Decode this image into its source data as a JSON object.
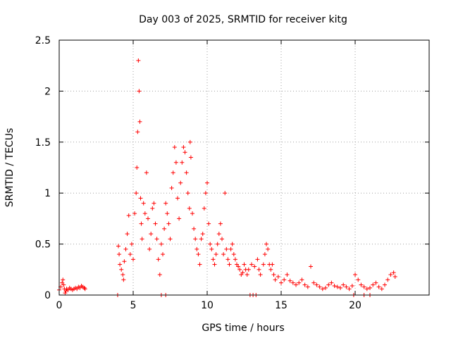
{
  "chart_data": {
    "type": "scatter",
    "title": "Day 003 of 2025, SRMTID for receiver kitg",
    "xlabel": "GPS time / hours",
    "ylabel": "SRMTID / TECUs",
    "xlim": [
      0,
      25
    ],
    "ylim": [
      0,
      2.5
    ],
    "xticks": [
      0,
      5,
      10,
      15,
      20
    ],
    "yticks": [
      0,
      0.5,
      1,
      1.5,
      2,
      2.5
    ],
    "ytick_labels": [
      "0",
      "0.5",
      "1",
      "1.5",
      "2",
      "2.5"
    ],
    "grid": true,
    "marker": "+",
    "color": "#ff0000",
    "series": [
      {
        "name": "SRMTID",
        "x": [
          0.0,
          0.1,
          0.2,
          0.25,
          0.3,
          0.35,
          0.4,
          0.45,
          0.5,
          0.6,
          0.7,
          0.8,
          0.9,
          1.0,
          1.1,
          1.2,
          1.3,
          1.4,
          1.5,
          1.6,
          1.7,
          1.75,
          4.0,
          4.05,
          4.1,
          4.2,
          4.3,
          4.35,
          4.4,
          4.5,
          4.6,
          4.7,
          4.8,
          4.9,
          5.0,
          5.1,
          5.2,
          5.25,
          5.3,
          5.35,
          5.4,
          5.45,
          5.5,
          5.55,
          5.6,
          5.7,
          5.8,
          5.9,
          6.0,
          6.1,
          6.2,
          6.3,
          6.4,
          6.5,
          6.6,
          6.7,
          6.8,
          6.9,
          7.0,
          7.1,
          7.2,
          7.3,
          7.4,
          7.5,
          7.6,
          7.7,
          7.8,
          7.9,
          8.0,
          8.1,
          8.2,
          8.3,
          8.4,
          8.5,
          8.6,
          8.7,
          8.8,
          8.85,
          8.9,
          9.0,
          9.1,
          9.2,
          9.3,
          9.4,
          9.5,
          9.6,
          9.7,
          9.8,
          9.9,
          10.0,
          10.1,
          10.2,
          10.3,
          10.4,
          10.5,
          10.6,
          10.7,
          10.8,
          10.9,
          11.0,
          11.1,
          11.2,
          11.3,
          11.4,
          11.5,
          11.6,
          11.7,
          11.8,
          11.9,
          12.0,
          12.1,
          12.2,
          12.3,
          12.4,
          12.5,
          12.6,
          12.7,
          12.8,
          13.0,
          13.2,
          13.4,
          13.5,
          13.6,
          13.8,
          13.9,
          14.0,
          14.1,
          14.2,
          14.3,
          14.4,
          14.5,
          14.6,
          14.8,
          15.0,
          15.2,
          15.4,
          15.6,
          15.8,
          16.0,
          16.2,
          16.4,
          16.6,
          16.8,
          17.0,
          17.2,
          17.4,
          17.6,
          17.8,
          18.0,
          18.2,
          18.4,
          18.6,
          18.8,
          19.0,
          19.2,
          19.4,
          19.6,
          19.8,
          20.0,
          20.2,
          20.4,
          20.6,
          20.8,
          21.0,
          21.2,
          21.4,
          21.6,
          21.8,
          22.0,
          22.2,
          22.4,
          22.6,
          22.7,
          3.95,
          6.9,
          7.2,
          12.9,
          13.1,
          13.3,
          19.9,
          20.6,
          21.0
        ],
        "y": [
          0.05,
          0.08,
          0.12,
          0.15,
          0.1,
          0.06,
          0.02,
          0.04,
          0.06,
          0.05,
          0.07,
          0.06,
          0.05,
          0.06,
          0.07,
          0.06,
          0.08,
          0.07,
          0.09,
          0.08,
          0.07,
          0.06,
          0.48,
          0.4,
          0.3,
          0.25,
          0.2,
          0.15,
          0.33,
          0.45,
          0.6,
          0.78,
          0.4,
          0.5,
          0.35,
          0.8,
          1.0,
          1.25,
          1.6,
          2.3,
          2.0,
          1.7,
          0.95,
          0.7,
          0.55,
          0.9,
          0.8,
          1.2,
          0.75,
          0.45,
          0.6,
          0.85,
          0.9,
          0.7,
          0.55,
          0.35,
          0.2,
          0.5,
          0.4,
          0.65,
          0.9,
          0.8,
          0.7,
          0.55,
          1.05,
          1.2,
          1.45,
          1.3,
          0.95,
          0.75,
          1.1,
          1.3,
          1.45,
          1.4,
          1.2,
          1.0,
          0.85,
          1.5,
          1.35,
          0.8,
          0.65,
          0.55,
          0.45,
          0.4,
          0.3,
          0.55,
          0.6,
          0.85,
          1.0,
          1.1,
          0.7,
          0.5,
          0.45,
          0.35,
          0.3,
          0.4,
          0.5,
          0.6,
          0.7,
          0.55,
          0.4,
          1.0,
          0.45,
          0.35,
          0.3,
          0.45,
          0.5,
          0.4,
          0.35,
          0.3,
          0.28,
          0.25,
          0.2,
          0.22,
          0.3,
          0.25,
          0.2,
          0.25,
          0.3,
          0.28,
          0.35,
          0.25,
          0.2,
          0.3,
          0.4,
          0.5,
          0.45,
          0.3,
          0.25,
          0.3,
          0.2,
          0.15,
          0.18,
          0.12,
          0.15,
          0.2,
          0.14,
          0.12,
          0.1,
          0.12,
          0.15,
          0.1,
          0.08,
          0.28,
          0.12,
          0.1,
          0.08,
          0.06,
          0.07,
          0.1,
          0.12,
          0.09,
          0.08,
          0.07,
          0.1,
          0.08,
          0.06,
          0.09,
          0.2,
          0.15,
          0.1,
          0.08,
          0.06,
          0.07,
          0.1,
          0.12,
          0.08,
          0.06,
          0.1,
          0.15,
          0.2,
          0.22,
          0.18,
          0.0,
          0.0,
          0.0,
          0.0,
          0.0,
          0.0,
          0.0,
          0.0,
          0.0
        ]
      }
    ]
  }
}
